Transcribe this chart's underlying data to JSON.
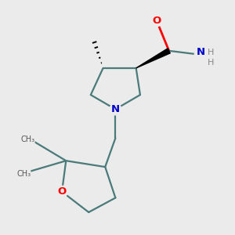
{
  "bg_color": "#ebebeb",
  "bond_color": "#4a7a7a",
  "bond_width": 1.6,
  "atom_colors": {
    "O": "#ff0000",
    "N": "#0000cc",
    "C": "#000000",
    "H": "#888888"
  },
  "wedge_color": "#000000",
  "hash_color": "#000000"
}
